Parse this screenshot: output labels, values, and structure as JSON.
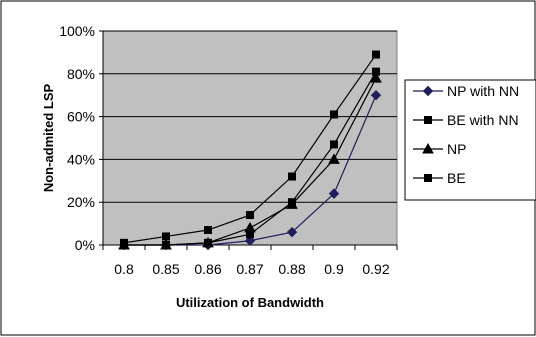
{
  "chart_data": {
    "type": "line",
    "xlabel": "Utilization of Bandwidth",
    "ylabel": "Non-admited LSP",
    "categories": [
      "0.8",
      "0.85",
      "0.86",
      "0.87",
      "0.88",
      "0.9",
      "0.92"
    ],
    "y_ticks": [
      "0%",
      "20%",
      "40%",
      "60%",
      "80%",
      "100%"
    ],
    "ylim": [
      0,
      100
    ],
    "grid": true,
    "legend_position": "right",
    "plot_background": "#c0c0c0",
    "series": [
      {
        "name": "NP with NN",
        "marker": "diamond",
        "color": "#1f1f5c",
        "values": [
          0,
          0,
          0,
          2,
          6,
          24,
          70
        ]
      },
      {
        "name": "BE with NN",
        "marker": "square",
        "color": "#000000",
        "values": [
          0,
          0,
          1,
          5,
          20,
          47,
          81
        ]
      },
      {
        "name": "NP",
        "marker": "triangle",
        "color": "#000000",
        "values": [
          0,
          0,
          1,
          8,
          19,
          40,
          78
        ]
      },
      {
        "name": "BE",
        "marker": "square",
        "color": "#000000",
        "values": [
          1,
          4,
          7,
          14,
          32,
          61,
          89
        ]
      }
    ]
  }
}
